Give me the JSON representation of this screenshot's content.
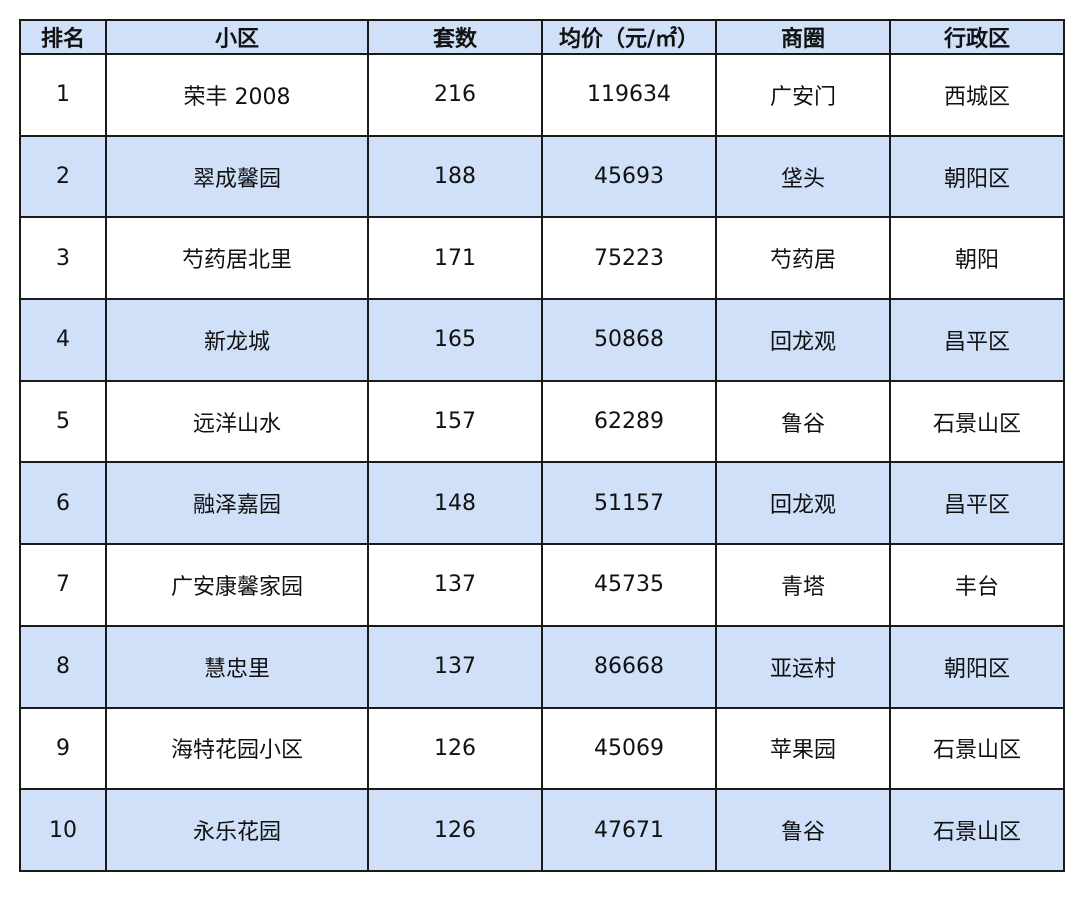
{
  "table": {
    "headers": [
      "排名",
      "小区",
      "套数",
      "均价（元/㎡）",
      "商圈",
      "行政区"
    ],
    "rows": [
      [
        "1",
        "荣丰 2008",
        "216",
        "119634",
        "广安门",
        "西城区"
      ],
      [
        "2",
        "翠成馨园",
        "188",
        "45693",
        "垡头",
        "朝阳区"
      ],
      [
        "3",
        "芍药居北里",
        "171",
        "75223",
        "芍药居",
        "朝阳"
      ],
      [
        "4",
        "新龙城",
        "165",
        "50868",
        "回龙观",
        "昌平区"
      ],
      [
        "5",
        "远洋山水",
        "157",
        "62289",
        "鲁谷",
        "石景山区"
      ],
      [
        "6",
        "融泽嘉园",
        "148",
        "51157",
        "回龙观",
        "昌平区"
      ],
      [
        "7",
        "广安康馨家园",
        "137",
        "45735",
        "青塔",
        "丰台"
      ],
      [
        "8",
        "慧忠里",
        "137",
        "86668",
        "亚运村",
        "朝阳区"
      ],
      [
        "9",
        "海特花园小区",
        "126",
        "45069",
        "苹果园",
        "石景山区"
      ],
      [
        "10",
        "永乐花园",
        "126",
        "47671",
        "鲁谷",
        "石景山区"
      ]
    ]
  },
  "colors": {
    "header_fill": "#cfe0f8",
    "stripe_fill": "#cfe0f8",
    "border": "#1a1a1a"
  }
}
